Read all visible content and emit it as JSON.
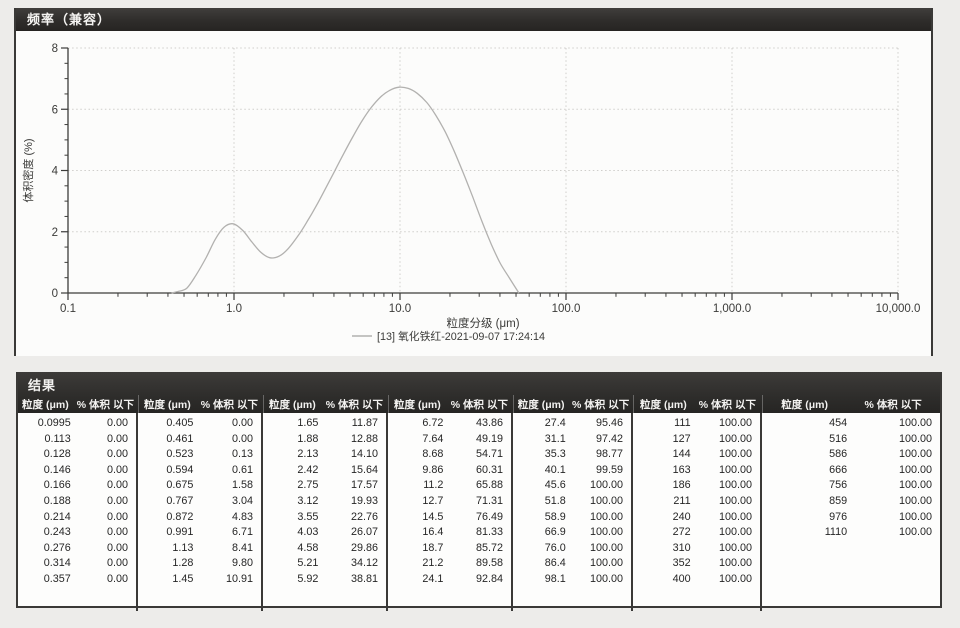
{
  "frequency_panel": {
    "title": "频率（兼容）"
  },
  "chart_data": {
    "type": "line",
    "title": "",
    "xlabel": "粒度分级 (μm)",
    "ylabel": "体积密度 (%)",
    "x_scale": "log",
    "xlim": [
      0.1,
      10000
    ],
    "ylim": [
      0,
      8
    ],
    "x_tick_values": [
      0.1,
      1,
      10,
      100,
      1000,
      10000
    ],
    "x_tick_labels": [
      "0.1",
      "1.0",
      "10.0",
      "100.0",
      "1,000.0",
      "10,000.0"
    ],
    "y_ticks": [
      0,
      2,
      4,
      6,
      8
    ],
    "grid": true,
    "legend_position": "bottom",
    "series": [
      {
        "name": "[13] 氧化铁红-2021-09-07 17:24:14",
        "color": "#b2b1af",
        "x": [
          0.42,
          0.46,
          0.52,
          0.59,
          0.68,
          0.77,
          0.87,
          0.99,
          1.13,
          1.28,
          1.45,
          1.65,
          1.88,
          2.13,
          2.42,
          2.75,
          3.12,
          3.55,
          4.03,
          4.58,
          5.21,
          5.92,
          6.72,
          7.64,
          8.68,
          9.86,
          11.2,
          12.7,
          14.5,
          16.4,
          18.7,
          21.2,
          24.1,
          27.4,
          31.1,
          35.3,
          40.1,
          45.6,
          52
        ],
        "y": [
          0,
          0.05,
          0.16,
          0.58,
          1.16,
          1.75,
          2.15,
          2.26,
          2.04,
          1.67,
          1.33,
          1.15,
          1.21,
          1.46,
          1.85,
          2.32,
          2.83,
          3.4,
          3.97,
          4.55,
          5.11,
          5.63,
          6.06,
          6.4,
          6.62,
          6.72,
          6.68,
          6.52,
          6.22,
          5.81,
          5.27,
          4.63,
          3.91,
          3.14,
          2.35,
          1.62,
          0.98,
          0.49,
          0
        ]
      }
    ]
  },
  "results": {
    "title": "结果",
    "col_size": "粒度 (μm)",
    "col_pct": "% 体积 以下",
    "groups": [
      [
        [
          "0.0995",
          "0.00"
        ],
        [
          "0.113",
          "0.00"
        ],
        [
          "0.128",
          "0.00"
        ],
        [
          "0.146",
          "0.00"
        ],
        [
          "0.166",
          "0.00"
        ],
        [
          "0.188",
          "0.00"
        ],
        [
          "0.214",
          "0.00"
        ],
        [
          "0.243",
          "0.00"
        ],
        [
          "0.276",
          "0.00"
        ],
        [
          "0.314",
          "0.00"
        ],
        [
          "0.357",
          "0.00"
        ]
      ],
      [
        [
          "0.405",
          "0.00"
        ],
        [
          "0.461",
          "0.00"
        ],
        [
          "0.523",
          "0.13"
        ],
        [
          "0.594",
          "0.61"
        ],
        [
          "0.675",
          "1.58"
        ],
        [
          "0.767",
          "3.04"
        ],
        [
          "0.872",
          "4.83"
        ],
        [
          "0.991",
          "6.71"
        ],
        [
          "1.13",
          "8.41"
        ],
        [
          "1.28",
          "9.80"
        ],
        [
          "1.45",
          "10.91"
        ]
      ],
      [
        [
          "1.65",
          "11.87"
        ],
        [
          "1.88",
          "12.88"
        ],
        [
          "2.13",
          "14.10"
        ],
        [
          "2.42",
          "15.64"
        ],
        [
          "2.75",
          "17.57"
        ],
        [
          "3.12",
          "19.93"
        ],
        [
          "3.55",
          "22.76"
        ],
        [
          "4.03",
          "26.07"
        ],
        [
          "4.58",
          "29.86"
        ],
        [
          "5.21",
          "34.12"
        ],
        [
          "5.92",
          "38.81"
        ]
      ],
      [
        [
          "6.72",
          "43.86"
        ],
        [
          "7.64",
          "49.19"
        ],
        [
          "8.68",
          "54.71"
        ],
        [
          "9.86",
          "60.31"
        ],
        [
          "11.2",
          "65.88"
        ],
        [
          "12.7",
          "71.31"
        ],
        [
          "14.5",
          "76.49"
        ],
        [
          "16.4",
          "81.33"
        ],
        [
          "18.7",
          "85.72"
        ],
        [
          "21.2",
          "89.58"
        ],
        [
          "24.1",
          "92.84"
        ]
      ],
      [
        [
          "27.4",
          "95.46"
        ],
        [
          "31.1",
          "97.42"
        ],
        [
          "35.3",
          "98.77"
        ],
        [
          "40.1",
          "99.59"
        ],
        [
          "45.6",
          "100.00"
        ],
        [
          "51.8",
          "100.00"
        ],
        [
          "58.9",
          "100.00"
        ],
        [
          "66.9",
          "100.00"
        ],
        [
          "76.0",
          "100.00"
        ],
        [
          "86.4",
          "100.00"
        ],
        [
          "98.1",
          "100.00"
        ]
      ],
      [
        [
          "111",
          "100.00"
        ],
        [
          "127",
          "100.00"
        ],
        [
          "144",
          "100.00"
        ],
        [
          "163",
          "100.00"
        ],
        [
          "186",
          "100.00"
        ],
        [
          "211",
          "100.00"
        ],
        [
          "240",
          "100.00"
        ],
        [
          "272",
          "100.00"
        ],
        [
          "310",
          "100.00"
        ],
        [
          "352",
          "100.00"
        ],
        [
          "400",
          "100.00"
        ]
      ],
      [
        [
          "454",
          "100.00"
        ],
        [
          "516",
          "100.00"
        ],
        [
          "586",
          "100.00"
        ],
        [
          "666",
          "100.00"
        ],
        [
          "756",
          "100.00"
        ],
        [
          "859",
          "100.00"
        ],
        [
          "976",
          "100.00"
        ],
        [
          "1110",
          "100.00"
        ]
      ]
    ]
  },
  "colors": {
    "header_bar": "#2e2d2b",
    "curve": "#b2b1af",
    "grid": "#cfcecb",
    "axis": "#3c3c3a"
  }
}
